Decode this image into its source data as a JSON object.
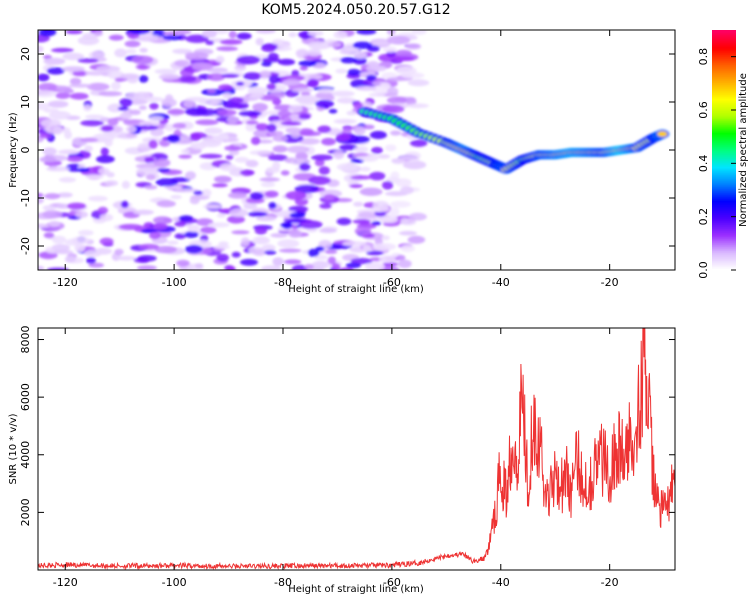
{
  "title": "KOM5.2024.050.20.57.G12",
  "chart_data": [
    {
      "type": "heatmap",
      "xlabel": "Height of straight line (km)",
      "ylabel": "Frequency (Hz)",
      "xlim": [
        -125,
        -8
      ],
      "ylim": [
        -25,
        25
      ],
      "xticks": [
        -120,
        -100,
        -80,
        -60,
        -40,
        -20
      ],
      "yticks": [
        -20,
        -10,
        0,
        10,
        20
      ],
      "colorbar": {
        "label": "Normalized spectral amplitude",
        "ticks": [
          0.0,
          0.2,
          0.4,
          0.6,
          0.8
        ],
        "range": [
          0.0,
          0.9
        ],
        "colormap": [
          "#ffffff",
          "#d9b8ff",
          "#9b30ff",
          "#4b00ff",
          "#0000ff",
          "#0080ff",
          "#00e5ff",
          "#00ff80",
          "#00ff00",
          "#b0ff00",
          "#ffff00",
          "#ffb000",
          "#ff6000",
          "#ff0000",
          "#ff0060"
        ]
      },
      "ridge": [
        {
          "x": -65,
          "y": 8,
          "a": 0.45
        },
        {
          "x": -60,
          "y": 6.5,
          "a": 0.5
        },
        {
          "x": -55,
          "y": 3.5,
          "a": 0.55
        },
        {
          "x": -50,
          "y": 1.5,
          "a": 0.6
        },
        {
          "x": -47,
          "y": 0,
          "a": 0.7
        },
        {
          "x": -44,
          "y": -1.5,
          "a": 0.55
        },
        {
          "x": -41,
          "y": -3,
          "a": 0.6
        },
        {
          "x": -39,
          "y": -4,
          "a": 0.65
        },
        {
          "x": -36,
          "y": -2,
          "a": 0.55
        },
        {
          "x": -33,
          "y": -1,
          "a": 0.65
        },
        {
          "x": -30,
          "y": -1,
          "a": 0.7
        },
        {
          "x": -27,
          "y": -0.5,
          "a": 0.75
        },
        {
          "x": -24,
          "y": -0.5,
          "a": 0.7
        },
        {
          "x": -21,
          "y": -0.5,
          "a": 0.65
        },
        {
          "x": -18,
          "y": 0,
          "a": 0.8
        },
        {
          "x": -15,
          "y": 0.5,
          "a": 0.65
        },
        {
          "x": -12,
          "y": 2.5,
          "a": 0.6
        },
        {
          "x": -10,
          "y": 3.5,
          "a": 0.7
        }
      ]
    },
    {
      "type": "line",
      "xlabel": "Height of straight line (km)",
      "ylabel": "SNR (10 * v/v)",
      "xlim": [
        -125,
        -8
      ],
      "ylim": [
        0,
        8400
      ],
      "xticks": [
        -120,
        -100,
        -80,
        -60,
        -40,
        -20
      ],
      "yticks": [
        2000,
        4000,
        6000,
        8000
      ],
      "color": "#ee3333",
      "series": [
        {
          "x": [
            -125,
            -120,
            -110,
            -100,
            -90,
            -80,
            -70,
            -60,
            -55,
            -50,
            -47,
            -45,
            -43,
            -42,
            -41,
            -40,
            -39,
            -38,
            -37,
            -36,
            -35,
            -34,
            -33,
            -32,
            -31,
            -30,
            -29,
            -28,
            -27,
            -26,
            -25,
            -24,
            -23,
            -22,
            -21,
            -20,
            -19,
            -18,
            -17,
            -16,
            -15,
            -14,
            -13.5,
            -13,
            -12.5,
            -12,
            -11,
            -10,
            -9,
            -8
          ],
          "values": [
            150,
            180,
            140,
            150,
            130,
            140,
            150,
            170,
            250,
            500,
            550,
            300,
            400,
            1000,
            2000,
            3500,
            2500,
            4600,
            4000,
            6200,
            3000,
            5500,
            4700,
            2800,
            2600,
            3600,
            2900,
            3300,
            2700,
            3800,
            3200,
            2900,
            3400,
            3900,
            3800,
            3500,
            4000,
            4200,
            3800,
            4700,
            5500,
            6200,
            8400,
            6000,
            4500,
            3100,
            2300,
            2000,
            2600,
            2900
          ]
        }
      ]
    }
  ]
}
